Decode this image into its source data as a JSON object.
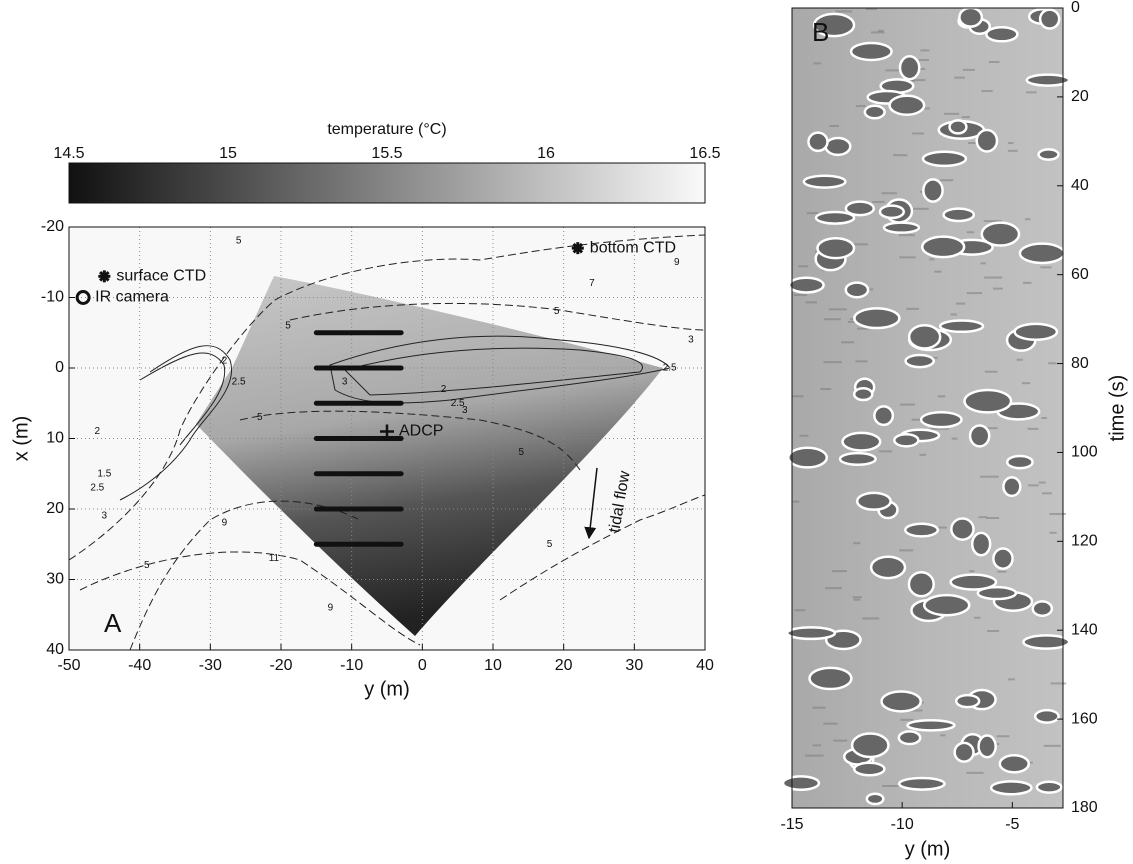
{
  "chart_data": [
    {
      "type": "contour",
      "panel_label": "A",
      "xlabel": "y (m)",
      "ylabel": "x (m)",
      "xlim": [
        -50,
        40
      ],
      "xticks": [
        -50,
        -40,
        -30,
        -20,
        -10,
        0,
        10,
        20,
        30,
        40
      ],
      "ylim": [
        -20,
        40
      ],
      "yticks": [
        -20,
        -10,
        0,
        10,
        20,
        30,
        40
      ],
      "grid": true,
      "colorbar": {
        "label": "temperature (°C)",
        "lim": [
          14.5,
          16.5
        ],
        "ticks": [
          14.5,
          15,
          15.5,
          16,
          16.5
        ]
      },
      "markers": [
        {
          "name": "surface CTD",
          "x": -45,
          "y": -13,
          "symbol": "star"
        },
        {
          "name": "IR camera",
          "x": -48,
          "y": -10,
          "symbol": "circle"
        },
        {
          "name": "bottom CTD",
          "x": 22,
          "y": -17,
          "symbol": "star"
        },
        {
          "name": "ADCP",
          "x": -5,
          "y": 9,
          "symbol": "plus"
        }
      ],
      "transects": [
        {
          "x": [
            -15,
            -3
          ],
          "y": -5
        },
        {
          "x": [
            -15,
            -3
          ],
          "y": 0
        },
        {
          "x": [
            -15,
            -3
          ],
          "y": 5
        },
        {
          "x": [
            -15,
            -3
          ],
          "y": 10
        },
        {
          "x": [
            -15,
            -3
          ],
          "y": 15
        },
        {
          "x": [
            -15,
            -3
          ],
          "y": 20
        },
        {
          "x": [
            -15,
            -3
          ],
          "y": 25
        }
      ],
      "annotations": [
        {
          "text": "tidal flow",
          "x": 28,
          "y": 19
        }
      ],
      "contour_labels": [
        {
          "level": 5,
          "x": -26,
          "y": -18
        },
        {
          "level": 7,
          "x": 24,
          "y": -12
        },
        {
          "level": 9,
          "x": 36,
          "y": -15
        },
        {
          "level": 5,
          "x": 19,
          "y": -8
        },
        {
          "level": 3,
          "x": 38,
          "y": -4
        },
        {
          "level": 5,
          "x": -19,
          "y": -6
        },
        {
          "level": 2,
          "x": -28,
          "y": -1
        },
        {
          "level": 2.5,
          "x": -26,
          "y": 2
        },
        {
          "level": 3,
          "x": -11,
          "y": 2
        },
        {
          "level": 2,
          "x": 3,
          "y": 3
        },
        {
          "level": 2.5,
          "x": 5,
          "y": 5
        },
        {
          "level": 3,
          "x": 6,
          "y": 6
        },
        {
          "level": 2.5,
          "x": 35,
          "y": 0
        },
        {
          "level": 5,
          "x": -23,
          "y": 7
        },
        {
          "level": 5,
          "x": 14,
          "y": 12
        },
        {
          "level": 2,
          "x": -46,
          "y": 9
        },
        {
          "level": 1.5,
          "x": -45,
          "y": 15
        },
        {
          "level": 2.5,
          "x": -46,
          "y": 17
        },
        {
          "level": 3,
          "x": -45,
          "y": 21
        },
        {
          "level": 9,
          "x": -28,
          "y": 22
        },
        {
          "level": 11,
          "x": -21,
          "y": 27
        },
        {
          "level": 5,
          "x": -39,
          "y": 28
        },
        {
          "level": 9,
          "x": -13,
          "y": 34
        },
        {
          "level": 5,
          "x": 18,
          "y": 25
        }
      ]
    },
    {
      "type": "image",
      "panel_label": "B",
      "xlabel": "y (m)",
      "ylabel": "time (s)",
      "xlim": [
        -15,
        -2.7
      ],
      "xticks": [
        -15,
        -10,
        -5
      ],
      "ylim": [
        0,
        180
      ],
      "yticks": [
        0,
        20,
        40,
        60,
        80,
        100,
        120,
        140,
        160,
        180
      ]
    }
  ]
}
